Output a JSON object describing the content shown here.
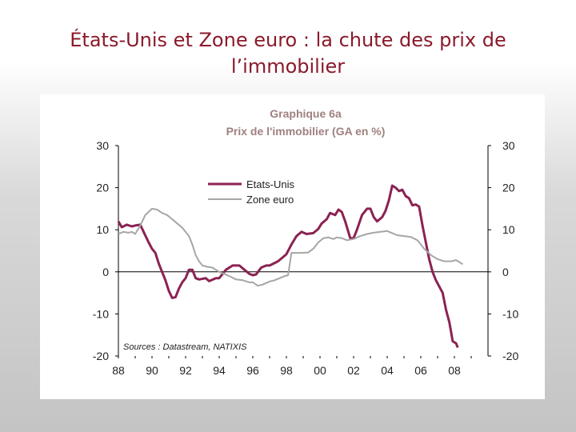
{
  "slide": {
    "title": "États-Unis et Zone euro : la chute des prix de l’immobilier"
  },
  "chart_data": {
    "type": "line",
    "title": "Graphique 6a",
    "subtitle": "Prix de l'immobilier (GA en %)",
    "source": "Sources : Datastream, NATIXIS",
    "xlim": [
      1988,
      2010
    ],
    "ylim": [
      -20,
      30
    ],
    "x_ticks": [
      1988,
      1990,
      1992,
      1994,
      1996,
      1998,
      2000,
      2002,
      2004,
      2006,
      2008
    ],
    "x_tick_labels": [
      "88",
      "90",
      "92",
      "94",
      "96",
      "98",
      "00",
      "02",
      "04",
      "06",
      "08"
    ],
    "y_ticks": [
      30,
      20,
      10,
      0,
      -10,
      -20
    ],
    "y_tick_labels": [
      "30",
      "20",
      "10",
      "0",
      "-10",
      "-20"
    ],
    "grid": false,
    "legend_position": "upper-left",
    "series": [
      {
        "name": "Etats-Unis",
        "color": "#8b2252",
        "points": [
          [
            1988.0,
            12
          ],
          [
            1988.2,
            10.6
          ],
          [
            1988.5,
            11.2
          ],
          [
            1988.8,
            10.8
          ],
          [
            1989.0,
            11.0
          ],
          [
            1989.3,
            11.2
          ],
          [
            1989.5,
            9.5
          ],
          [
            1989.8,
            7.0
          ],
          [
            1990.0,
            5.5
          ],
          [
            1990.2,
            4.5
          ],
          [
            1990.4,
            2.0
          ],
          [
            1990.6,
            0
          ],
          [
            1990.8,
            -2.0
          ],
          [
            1991.0,
            -4.5
          ],
          [
            1991.2,
            -6.2
          ],
          [
            1991.4,
            -6.0
          ],
          [
            1991.6,
            -4.0
          ],
          [
            1991.8,
            -2.5
          ],
          [
            1992.0,
            -1.5
          ],
          [
            1992.2,
            0.5
          ],
          [
            1992.4,
            0.5
          ],
          [
            1992.6,
            -1.5
          ],
          [
            1992.8,
            -1.8
          ],
          [
            1993.2,
            -1.5
          ],
          [
            1993.4,
            -2.2
          ],
          [
            1993.8,
            -1.5
          ],
          [
            1994.0,
            -1.5
          ],
          [
            1994.4,
            0.5
          ],
          [
            1994.8,
            1.5
          ],
          [
            1995.2,
            1.5
          ],
          [
            1995.5,
            0.5
          ],
          [
            1995.8,
            -0.5
          ],
          [
            1996.0,
            -0.8
          ],
          [
            1996.2,
            -0.6
          ],
          [
            1996.5,
            1.0
          ],
          [
            1996.8,
            1.5
          ],
          [
            1997.0,
            1.5
          ],
          [
            1997.5,
            2.5
          ],
          [
            1997.8,
            3.5
          ],
          [
            1998.0,
            4.2
          ],
          [
            1998.3,
            6.5
          ],
          [
            1998.6,
            8.5
          ],
          [
            1998.9,
            9.5
          ],
          [
            1999.2,
            9.0
          ],
          [
            1999.6,
            9.2
          ],
          [
            1999.9,
            10.2
          ],
          [
            2000.1,
            11.5
          ],
          [
            2000.4,
            12.5
          ],
          [
            2000.6,
            14.0
          ],
          [
            2000.9,
            13.5
          ],
          [
            2001.1,
            14.8
          ],
          [
            2001.3,
            14.2
          ],
          [
            2001.5,
            12.0
          ],
          [
            2001.8,
            8.0
          ],
          [
            2002.0,
            8.0
          ],
          [
            2002.2,
            10.0
          ],
          [
            2002.5,
            13.5
          ],
          [
            2002.8,
            15.0
          ],
          [
            2003.0,
            15.0
          ],
          [
            2003.2,
            13.0
          ],
          [
            2003.4,
            12.0
          ],
          [
            2003.7,
            13.0
          ],
          [
            2003.9,
            14.5
          ],
          [
            2004.1,
            17.0
          ],
          [
            2004.3,
            20.5
          ],
          [
            2004.5,
            20.0
          ],
          [
            2004.7,
            19.2
          ],
          [
            2004.9,
            19.5
          ],
          [
            2005.1,
            18.0
          ],
          [
            2005.3,
            17.5
          ],
          [
            2005.5,
            15.8
          ],
          [
            2005.7,
            16.0
          ],
          [
            2005.9,
            15.5
          ],
          [
            2006.1,
            11.0
          ],
          [
            2006.3,
            7.0
          ],
          [
            2006.5,
            3.0
          ],
          [
            2006.7,
            0
          ],
          [
            2006.9,
            -2.0
          ],
          [
            2007.1,
            -3.5
          ],
          [
            2007.3,
            -5.0
          ],
          [
            2007.5,
            -9.0
          ],
          [
            2007.7,
            -12.0
          ],
          [
            2007.9,
            -16.5
          ],
          [
            2008.1,
            -17.0
          ],
          [
            2008.2,
            -18.0
          ]
        ]
      },
      {
        "name": "Zone euro",
        "color": "#a6a6a6",
        "points": [
          [
            1988.0,
            9.0
          ],
          [
            1988.3,
            9.5
          ],
          [
            1988.6,
            9.3
          ],
          [
            1988.8,
            9.5
          ],
          [
            1989.0,
            9.0
          ],
          [
            1989.3,
            11.0
          ],
          [
            1989.6,
            13.5
          ],
          [
            1990.0,
            15.0
          ],
          [
            1990.3,
            14.8
          ],
          [
            1990.6,
            14.0
          ],
          [
            1990.9,
            13.5
          ],
          [
            1991.2,
            12.5
          ],
          [
            1991.5,
            11.5
          ],
          [
            1991.8,
            10.5
          ],
          [
            1992.2,
            8.5
          ],
          [
            1992.4,
            6.5
          ],
          [
            1992.6,
            4.0
          ],
          [
            1992.8,
            2.5
          ],
          [
            1993.0,
            1.5
          ],
          [
            1993.3,
            1.2
          ],
          [
            1993.6,
            1.0
          ],
          [
            1994.0,
            0
          ],
          [
            1994.3,
            -0.5
          ],
          [
            1994.6,
            -1.0
          ],
          [
            1995.0,
            -1.8
          ],
          [
            1995.4,
            -2.0
          ],
          [
            1995.8,
            -2.5
          ],
          [
            1996.0,
            -2.5
          ],
          [
            1996.3,
            -3.3
          ],
          [
            1996.6,
            -3.0
          ],
          [
            1997.0,
            -2.3
          ],
          [
            1997.3,
            -2.0
          ],
          [
            1997.6,
            -1.5
          ],
          [
            1997.9,
            -1.0
          ],
          [
            1998.1,
            -0.8
          ],
          [
            1998.3,
            4.5
          ],
          [
            1998.6,
            4.5
          ],
          [
            1998.9,
            4.5
          ],
          [
            1999.3,
            4.6
          ],
          [
            1999.6,
            5.5
          ],
          [
            1999.9,
            7.0
          ],
          [
            2000.2,
            8.0
          ],
          [
            2000.5,
            8.2
          ],
          [
            2000.8,
            7.8
          ],
          [
            2001.0,
            8.2
          ],
          [
            2001.3,
            8.0
          ],
          [
            2001.6,
            7.5
          ],
          [
            2002.0,
            7.8
          ],
          [
            2002.4,
            8.5
          ],
          [
            2002.8,
            9.0
          ],
          [
            2003.2,
            9.3
          ],
          [
            2003.6,
            9.5
          ],
          [
            2004.0,
            9.7
          ],
          [
            2004.3,
            9.2
          ],
          [
            2004.6,
            8.7
          ],
          [
            2005.0,
            8.5
          ],
          [
            2005.4,
            8.3
          ],
          [
            2005.8,
            7.5
          ],
          [
            2006.2,
            5.5
          ],
          [
            2006.6,
            4.0
          ],
          [
            2007.0,
            3.0
          ],
          [
            2007.4,
            2.5
          ],
          [
            2007.8,
            2.5
          ],
          [
            2008.1,
            2.8
          ],
          [
            2008.5,
            1.8
          ]
        ]
      }
    ]
  }
}
